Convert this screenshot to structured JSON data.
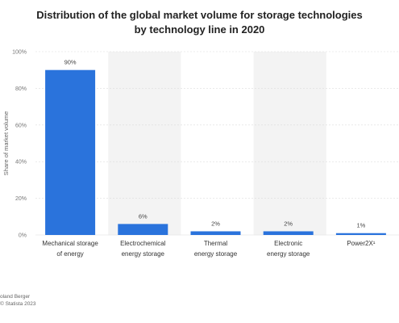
{
  "title_line1": "Distribution of the global market volume for storage technologies",
  "title_line2": "by technology line in 2020",
  "source_line1": "oland Berger",
  "source_line2": "© Statista 2023",
  "colors": {
    "bar": "#2a73dc",
    "band": "#f3f3f3",
    "grid": "#dddddd"
  },
  "chart_data": {
    "type": "bar",
    "title": "Distribution of the global market volume for storage technologies by technology line in 2020",
    "xlabel": "",
    "ylabel": "Share of market volume",
    "ylim": [
      0,
      100
    ],
    "yticks": [
      "0%",
      "20%",
      "40%",
      "60%",
      "80%",
      "100%"
    ],
    "categories": [
      [
        "Mechanical storage",
        "of energy"
      ],
      [
        "Electrochemical",
        "energy storage"
      ],
      [
        "Thermal",
        "energy storage"
      ],
      [
        "Electronic",
        "energy storage"
      ],
      [
        "Power2X¹"
      ]
    ],
    "values": [
      90,
      6,
      2,
      2,
      1
    ],
    "data_labels": [
      "90%",
      "6%",
      "2%",
      "2%",
      "1%"
    ]
  }
}
